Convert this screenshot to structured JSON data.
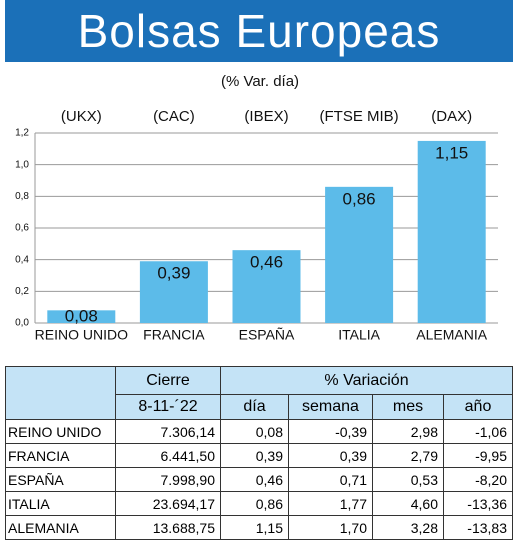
{
  "title": "Bolsas Europeas",
  "chart_data": {
    "type": "bar",
    "subtitle": "(% Var. día)",
    "index_labels": [
      "(UKX)",
      "(CAC)",
      "(IBEX)",
      "(FTSE MIB)",
      "(DAX)"
    ],
    "categories": [
      "REINO UNIDO",
      "FRANCIA",
      "ESPAÑA",
      "ITALIA",
      "ALEMANIA"
    ],
    "values": [
      0.08,
      0.39,
      0.46,
      0.86,
      1.15
    ],
    "value_labels": [
      "0,08",
      "0,39",
      "0,46",
      "0,86",
      "1,15"
    ],
    "color": "#5cbbe9",
    "ylim": [
      0,
      1.2
    ],
    "yticks": [
      {
        "value": 0,
        "label": "0,0"
      },
      {
        "value": 0.2,
        "label": "0,2"
      },
      {
        "value": 0.4,
        "label": "0,4"
      },
      {
        "value": 0.6,
        "label": "0,6"
      },
      {
        "value": 0.8,
        "label": "0,8"
      },
      {
        "value": 1.0,
        "label": "1,0"
      },
      {
        "value": 1.2,
        "label": "1,2"
      }
    ],
    "grid": true
  },
  "table": {
    "header": [
      "Cierre",
      "% Variación"
    ],
    "subheader": [
      "8-11-´22",
      "día",
      "semana",
      "mes",
      "año"
    ],
    "rows": [
      [
        "REINO UNIDO",
        "7.306,14",
        "0,08",
        "-0,39",
        "2,98",
        "-1,06"
      ],
      [
        "FRANCIA",
        "6.441,50",
        "0,39",
        "0,39",
        "2,79",
        "-9,95"
      ],
      [
        "ESPAÑA",
        "7.998,90",
        "0,46",
        "0,71",
        "0,53",
        "-8,20"
      ],
      [
        "ITALIA",
        "23.694,17",
        "0,86",
        "1,77",
        "4,60",
        "-13,36"
      ],
      [
        "ALEMANIA",
        "13.688,75",
        "1,15",
        "1,70",
        "3,28",
        "-13,83"
      ]
    ]
  }
}
